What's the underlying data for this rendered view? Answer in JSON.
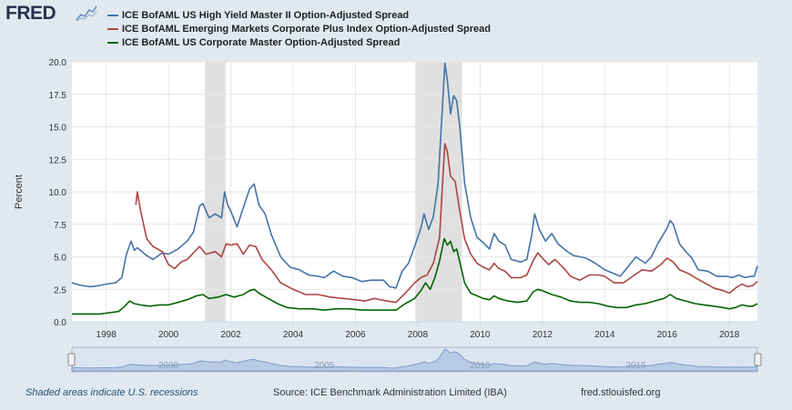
{
  "brand": {
    "logo_text": "FRED"
  },
  "footer": {
    "recession_note": "Shaded areas indicate U.S. recessions",
    "source": "Source: ICE Benchmark Administration Limited (IBA)",
    "url": "fred.stlouisfed.org"
  },
  "colors": {
    "high_yield": "#4572a7",
    "emerging": "#aa4643",
    "corporate": "#006400",
    "recession": "#e0e0e0",
    "logo": "#24324b"
  },
  "chart_data": {
    "type": "line",
    "ylabel": "Percent",
    "ylim": [
      0,
      20
    ],
    "yticks": [
      "0.0",
      "2.5",
      "5.0",
      "7.5",
      "10.0",
      "12.5",
      "15.0",
      "17.5",
      "20.0"
    ],
    "xlim": [
      1996.9,
      2018.9
    ],
    "xticks": [
      "1998",
      "2000",
      "2002",
      "2004",
      "2006",
      "2008",
      "2010",
      "2012",
      "2014",
      "2016",
      "2018"
    ],
    "navigator_labels": [
      "2000",
      "2005",
      "2010",
      "2015"
    ],
    "recessions": [
      [
        2001.17,
        2001.83
      ],
      [
        2007.92,
        2009.42
      ]
    ],
    "grid": true,
    "legend_position": "top-left",
    "series": [
      {
        "name": "ICE BofAML US High Yield Master II Option-Adjusted Spread",
        "color": "#4572a7",
        "points": [
          [
            1996.9,
            3.0
          ],
          [
            1997.2,
            2.8
          ],
          [
            1997.5,
            2.7
          ],
          [
            1997.8,
            2.8
          ],
          [
            1998.0,
            2.9
          ],
          [
            1998.3,
            3.0
          ],
          [
            1998.5,
            3.4
          ],
          [
            1998.65,
            5.2
          ],
          [
            1998.8,
            6.2
          ],
          [
            1998.9,
            5.5
          ],
          [
            1999.0,
            5.7
          ],
          [
            1999.3,
            5.1
          ],
          [
            1999.5,
            4.8
          ],
          [
            1999.8,
            5.3
          ],
          [
            2000.0,
            5.2
          ],
          [
            2000.3,
            5.6
          ],
          [
            2000.6,
            6.2
          ],
          [
            2000.8,
            6.9
          ],
          [
            2001.0,
            8.9
          ],
          [
            2001.1,
            9.1
          ],
          [
            2001.3,
            8.0
          ],
          [
            2001.5,
            8.3
          ],
          [
            2001.7,
            8.0
          ],
          [
            2001.8,
            10.0
          ],
          [
            2001.9,
            9.0
          ],
          [
            2002.0,
            8.5
          ],
          [
            2002.2,
            7.3
          ],
          [
            2002.4,
            8.8
          ],
          [
            2002.6,
            10.2
          ],
          [
            2002.75,
            10.6
          ],
          [
            2002.9,
            9.0
          ],
          [
            2003.1,
            8.3
          ],
          [
            2003.3,
            6.7
          ],
          [
            2003.6,
            5.0
          ],
          [
            2003.9,
            4.2
          ],
          [
            2004.2,
            4.0
          ],
          [
            2004.5,
            3.6
          ],
          [
            2004.8,
            3.5
          ],
          [
            2005.0,
            3.4
          ],
          [
            2005.3,
            3.9
          ],
          [
            2005.6,
            3.5
          ],
          [
            2005.9,
            3.4
          ],
          [
            2006.2,
            3.1
          ],
          [
            2006.5,
            3.2
          ],
          [
            2006.9,
            3.2
          ],
          [
            2007.1,
            2.7
          ],
          [
            2007.3,
            2.6
          ],
          [
            2007.5,
            3.9
          ],
          [
            2007.7,
            4.5
          ],
          [
            2007.9,
            5.8
          ],
          [
            2008.1,
            7.2
          ],
          [
            2008.2,
            8.3
          ],
          [
            2008.35,
            7.1
          ],
          [
            2008.5,
            8.1
          ],
          [
            2008.65,
            10.6
          ],
          [
            2008.75,
            14.8
          ],
          [
            2008.87,
            19.9
          ],
          [
            2008.95,
            18.6
          ],
          [
            2009.05,
            16.0
          ],
          [
            2009.15,
            17.4
          ],
          [
            2009.25,
            17.0
          ],
          [
            2009.35,
            15.0
          ],
          [
            2009.5,
            10.7
          ],
          [
            2009.7,
            8.0
          ],
          [
            2009.9,
            6.5
          ],
          [
            2010.1,
            6.1
          ],
          [
            2010.3,
            5.6
          ],
          [
            2010.45,
            6.8
          ],
          [
            2010.6,
            6.2
          ],
          [
            2010.8,
            5.9
          ],
          [
            2011.0,
            4.8
          ],
          [
            2011.3,
            4.6
          ],
          [
            2011.5,
            4.8
          ],
          [
            2011.65,
            6.6
          ],
          [
            2011.75,
            8.3
          ],
          [
            2011.9,
            7.1
          ],
          [
            2012.1,
            6.2
          ],
          [
            2012.3,
            6.8
          ],
          [
            2012.5,
            6.0
          ],
          [
            2012.8,
            5.4
          ],
          [
            2013.0,
            5.1
          ],
          [
            2013.4,
            4.9
          ],
          [
            2013.7,
            4.5
          ],
          [
            2014.0,
            4.0
          ],
          [
            2014.3,
            3.7
          ],
          [
            2014.5,
            3.5
          ],
          [
            2014.8,
            4.4
          ],
          [
            2015.0,
            5.0
          ],
          [
            2015.3,
            4.5
          ],
          [
            2015.5,
            5.0
          ],
          [
            2015.7,
            6.0
          ],
          [
            2016.0,
            7.2
          ],
          [
            2016.1,
            7.8
          ],
          [
            2016.2,
            7.5
          ],
          [
            2016.4,
            6.0
          ],
          [
            2016.6,
            5.4
          ],
          [
            2016.8,
            4.9
          ],
          [
            2017.0,
            4.0
          ],
          [
            2017.3,
            3.9
          ],
          [
            2017.6,
            3.5
          ],
          [
            2017.9,
            3.5
          ],
          [
            2018.1,
            3.4
          ],
          [
            2018.3,
            3.6
          ],
          [
            2018.5,
            3.4
          ],
          [
            2018.7,
            3.5
          ],
          [
            2018.8,
            3.5
          ],
          [
            2018.9,
            4.3
          ]
        ]
      },
      {
        "name": "ICE BofAML Emerging Markets Corporate Plus Index Option-Adjusted Spread",
        "color": "#aa4643",
        "points": [
          [
            1998.95,
            9.0
          ],
          [
            1999.0,
            10.0
          ],
          [
            1999.1,
            8.6
          ],
          [
            1999.3,
            6.4
          ],
          [
            1999.5,
            5.8
          ],
          [
            1999.8,
            5.4
          ],
          [
            2000.0,
            4.4
          ],
          [
            2000.2,
            4.1
          ],
          [
            2000.4,
            4.6
          ],
          [
            2000.6,
            4.8
          ],
          [
            2000.8,
            5.3
          ],
          [
            2001.0,
            5.8
          ],
          [
            2001.2,
            5.2
          ],
          [
            2001.5,
            5.4
          ],
          [
            2001.7,
            5.0
          ],
          [
            2001.85,
            6.0
          ],
          [
            2002.0,
            5.9
          ],
          [
            2002.2,
            6.0
          ],
          [
            2002.4,
            5.2
          ],
          [
            2002.6,
            5.9
          ],
          [
            2002.8,
            5.8
          ],
          [
            2003.0,
            4.8
          ],
          [
            2003.3,
            4.0
          ],
          [
            2003.6,
            3.0
          ],
          [
            2004.0,
            2.5
          ],
          [
            2004.4,
            2.1
          ],
          [
            2004.8,
            2.1
          ],
          [
            2005.2,
            1.9
          ],
          [
            2005.6,
            1.8
          ],
          [
            2006.0,
            1.7
          ],
          [
            2006.3,
            1.6
          ],
          [
            2006.6,
            1.8
          ],
          [
            2007.0,
            1.6
          ],
          [
            2007.3,
            1.5
          ],
          [
            2007.6,
            2.2
          ],
          [
            2007.9,
            3.0
          ],
          [
            2008.1,
            3.4
          ],
          [
            2008.3,
            3.6
          ],
          [
            2008.5,
            4.5
          ],
          [
            2008.7,
            6.5
          ],
          [
            2008.78,
            10.0
          ],
          [
            2008.87,
            13.7
          ],
          [
            2008.95,
            13.1
          ],
          [
            2009.05,
            11.2
          ],
          [
            2009.2,
            10.8
          ],
          [
            2009.35,
            8.5
          ],
          [
            2009.5,
            6.4
          ],
          [
            2009.7,
            5.2
          ],
          [
            2009.9,
            4.5
          ],
          [
            2010.1,
            4.2
          ],
          [
            2010.3,
            4.0
          ],
          [
            2010.45,
            4.5
          ],
          [
            2010.6,
            4.1
          ],
          [
            2010.8,
            3.9
          ],
          [
            2011.0,
            3.4
          ],
          [
            2011.3,
            3.4
          ],
          [
            2011.5,
            3.6
          ],
          [
            2011.7,
            4.7
          ],
          [
            2011.85,
            5.3
          ],
          [
            2012.0,
            4.9
          ],
          [
            2012.2,
            4.4
          ],
          [
            2012.4,
            4.8
          ],
          [
            2012.7,
            4.1
          ],
          [
            2012.9,
            3.5
          ],
          [
            2013.2,
            3.2
          ],
          [
            2013.5,
            3.6
          ],
          [
            2013.8,
            3.6
          ],
          [
            2014.0,
            3.5
          ],
          [
            2014.3,
            3.0
          ],
          [
            2014.6,
            3.0
          ],
          [
            2014.9,
            3.5
          ],
          [
            2015.2,
            4.0
          ],
          [
            2015.5,
            3.9
          ],
          [
            2015.8,
            4.4
          ],
          [
            2016.0,
            4.9
          ],
          [
            2016.2,
            4.6
          ],
          [
            2016.4,
            4.0
          ],
          [
            2016.7,
            3.7
          ],
          [
            2016.9,
            3.4
          ],
          [
            2017.2,
            3.0
          ],
          [
            2017.5,
            2.6
          ],
          [
            2017.8,
            2.4
          ],
          [
            2018.0,
            2.2
          ],
          [
            2018.2,
            2.6
          ],
          [
            2018.4,
            2.9
          ],
          [
            2018.6,
            2.7
          ],
          [
            2018.75,
            2.8
          ],
          [
            2018.9,
            3.1
          ]
        ]
      },
      {
        "name": "ICE BofAML US Corporate Master Option-Adjusted Spread",
        "color": "#006400",
        "points": [
          [
            1996.9,
            0.6
          ],
          [
            1997.2,
            0.6
          ],
          [
            1997.5,
            0.6
          ],
          [
            1997.8,
            0.6
          ],
          [
            1998.1,
            0.7
          ],
          [
            1998.4,
            0.8
          ],
          [
            1998.6,
            1.2
          ],
          [
            1998.75,
            1.6
          ],
          [
            1998.9,
            1.4
          ],
          [
            1999.1,
            1.3
          ],
          [
            1999.4,
            1.2
          ],
          [
            1999.7,
            1.3
          ],
          [
            2000.0,
            1.3
          ],
          [
            2000.3,
            1.5
          ],
          [
            2000.6,
            1.7
          ],
          [
            2000.9,
            2.0
          ],
          [
            2001.1,
            2.1
          ],
          [
            2001.3,
            1.8
          ],
          [
            2001.6,
            1.9
          ],
          [
            2001.85,
            2.1
          ],
          [
            2002.1,
            1.9
          ],
          [
            2002.4,
            2.1
          ],
          [
            2002.6,
            2.4
          ],
          [
            2002.75,
            2.5
          ],
          [
            2002.9,
            2.2
          ],
          [
            2003.2,
            1.8
          ],
          [
            2003.5,
            1.4
          ],
          [
            2003.8,
            1.1
          ],
          [
            2004.2,
            1.0
          ],
          [
            2004.6,
            1.0
          ],
          [
            2005.0,
            0.9
          ],
          [
            2005.4,
            1.0
          ],
          [
            2005.8,
            1.0
          ],
          [
            2006.2,
            0.9
          ],
          [
            2006.6,
            0.9
          ],
          [
            2007.0,
            0.9
          ],
          [
            2007.3,
            0.9
          ],
          [
            2007.6,
            1.4
          ],
          [
            2007.9,
            1.8
          ],
          [
            2008.1,
            2.4
          ],
          [
            2008.25,
            3.0
          ],
          [
            2008.4,
            2.5
          ],
          [
            2008.55,
            3.4
          ],
          [
            2008.7,
            4.7
          ],
          [
            2008.85,
            6.4
          ],
          [
            2008.95,
            5.9
          ],
          [
            2009.05,
            6.2
          ],
          [
            2009.15,
            5.4
          ],
          [
            2009.25,
            5.6
          ],
          [
            2009.35,
            4.6
          ],
          [
            2009.5,
            3.0
          ],
          [
            2009.7,
            2.2
          ],
          [
            2009.9,
            2.0
          ],
          [
            2010.1,
            1.8
          ],
          [
            2010.3,
            1.7
          ],
          [
            2010.45,
            2.0
          ],
          [
            2010.6,
            1.8
          ],
          [
            2010.9,
            1.6
          ],
          [
            2011.2,
            1.5
          ],
          [
            2011.5,
            1.6
          ],
          [
            2011.7,
            2.3
          ],
          [
            2011.85,
            2.5
          ],
          [
            2012.0,
            2.4
          ],
          [
            2012.3,
            2.1
          ],
          [
            2012.6,
            1.9
          ],
          [
            2012.9,
            1.6
          ],
          [
            2013.2,
            1.5
          ],
          [
            2013.5,
            1.5
          ],
          [
            2013.8,
            1.4
          ],
          [
            2014.1,
            1.2
          ],
          [
            2014.4,
            1.1
          ],
          [
            2014.7,
            1.1
          ],
          [
            2015.0,
            1.3
          ],
          [
            2015.3,
            1.4
          ],
          [
            2015.6,
            1.6
          ],
          [
            2015.9,
            1.8
          ],
          [
            2016.1,
            2.1
          ],
          [
            2016.3,
            1.8
          ],
          [
            2016.6,
            1.6
          ],
          [
            2016.9,
            1.4
          ],
          [
            2017.2,
            1.3
          ],
          [
            2017.5,
            1.2
          ],
          [
            2017.8,
            1.1
          ],
          [
            2018.0,
            1.0
          ],
          [
            2018.2,
            1.1
          ],
          [
            2018.4,
            1.3
          ],
          [
            2018.6,
            1.2
          ],
          [
            2018.75,
            1.2
          ],
          [
            2018.9,
            1.4
          ]
        ]
      }
    ]
  }
}
